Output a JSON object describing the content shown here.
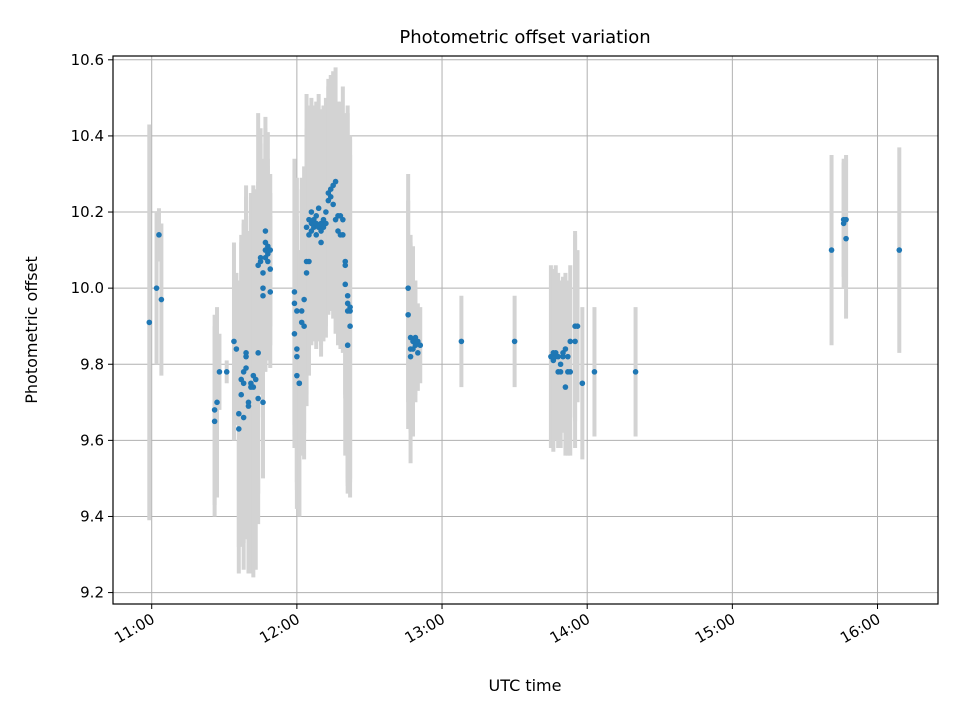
{
  "chart_data": {
    "type": "scatter",
    "title": "Photometric offset variation",
    "xlabel": "UTC time",
    "ylabel": "Photometric offset",
    "xlim": [
      "10:44",
      "16:25"
    ],
    "ylim": [
      9.17,
      10.61
    ],
    "x_ticks": [
      "11:00",
      "12:00",
      "13:00",
      "14:00",
      "15:00",
      "16:00"
    ],
    "y_ticks": [
      "9.2",
      "9.4",
      "9.6",
      "9.8",
      "10.0",
      "10.2",
      "10.4",
      "10.6"
    ],
    "grid": true,
    "colors": {
      "points": "#1f77b4",
      "errorbars": "#d3d3d3",
      "grid": "#b0b0b0"
    },
    "series": [
      {
        "points": [
          {
            "t": "10:59",
            "y": 9.91,
            "err": 0.52
          },
          {
            "t": "11:02",
            "y": 10.0,
            "err": 0.2
          },
          {
            "t": "11:03",
            "y": 10.14,
            "err": 0.07
          },
          {
            "t": "11:04",
            "y": 9.97,
            "err": 0.2
          },
          {
            "t": "11:26",
            "y": 9.65,
            "err": 0.25
          },
          {
            "t": "11:26",
            "y": 9.68,
            "err": 0.25
          },
          {
            "t": "11:27",
            "y": 9.7,
            "err": 0.25
          },
          {
            "t": "11:28",
            "y": 9.78,
            "err": 0.1
          },
          {
            "t": "11:31",
            "y": 9.78,
            "err": 0.03
          },
          {
            "t": "11:34",
            "y": 9.86,
            "err": 0.26
          },
          {
            "t": "11:35",
            "y": 9.84,
            "err": 0.2
          },
          {
            "t": "11:36",
            "y": 9.67,
            "err": 0.35
          },
          {
            "t": "11:36",
            "y": 9.63,
            "err": 0.38
          },
          {
            "t": "11:37",
            "y": 9.76,
            "err": 0.38
          },
          {
            "t": "11:37",
            "y": 9.72,
            "err": 0.4
          },
          {
            "t": "11:38",
            "y": 9.78,
            "err": 0.4
          },
          {
            "t": "11:38",
            "y": 9.75,
            "err": 0.42
          },
          {
            "t": "11:38",
            "y": 9.66,
            "err": 0.4
          },
          {
            "t": "11:39",
            "y": 9.83,
            "err": 0.4
          },
          {
            "t": "11:39",
            "y": 9.82,
            "err": 0.45
          },
          {
            "t": "11:39",
            "y": 9.79,
            "err": 0.45
          },
          {
            "t": "11:40",
            "y": 9.7,
            "err": 0.45
          },
          {
            "t": "11:40",
            "y": 9.69,
            "err": 0.42
          },
          {
            "t": "11:41",
            "y": 9.75,
            "err": 0.5
          },
          {
            "t": "11:41",
            "y": 9.74,
            "err": 0.45
          },
          {
            "t": "11:42",
            "y": 9.77,
            "err": 0.5
          },
          {
            "t": "11:42",
            "y": 9.74,
            "err": 0.5
          },
          {
            "t": "11:43",
            "y": 9.76,
            "err": 0.5
          },
          {
            "t": "11:44",
            "y": 9.83,
            "err": 0.45
          },
          {
            "t": "11:44",
            "y": 10.06,
            "err": 0.4
          },
          {
            "t": "11:44",
            "y": 9.71,
            "err": 0.25
          },
          {
            "t": "11:45",
            "y": 10.07,
            "err": 0.35
          },
          {
            "t": "11:45",
            "y": 10.08,
            "err": 0.3
          },
          {
            "t": "11:46",
            "y": 10.04,
            "err": 0.3
          },
          {
            "t": "11:46",
            "y": 10.0,
            "err": 0.3
          },
          {
            "t": "11:46",
            "y": 9.98,
            "err": 0.3
          },
          {
            "t": "11:46",
            "y": 9.7,
            "err": 0.2
          },
          {
            "t": "11:47",
            "y": 10.08,
            "err": 0.3
          },
          {
            "t": "11:47",
            "y": 10.1,
            "err": 0.3
          },
          {
            "t": "11:47",
            "y": 10.12,
            "err": 0.3
          },
          {
            "t": "11:47",
            "y": 10.15,
            "err": 0.3
          },
          {
            "t": "11:48",
            "y": 10.11,
            "err": 0.3
          },
          {
            "t": "11:48",
            "y": 10.09,
            "err": 0.25
          },
          {
            "t": "11:48",
            "y": 10.07,
            "err": 0.25
          },
          {
            "t": "11:49",
            "y": 10.1,
            "err": 0.2
          },
          {
            "t": "11:49",
            "y": 10.05,
            "err": 0.2
          },
          {
            "t": "11:49",
            "y": 9.99,
            "err": 0.2
          },
          {
            "t": "11:59",
            "y": 9.99,
            "err": 0.35
          },
          {
            "t": "11:59",
            "y": 9.96,
            "err": 0.35
          },
          {
            "t": "11:59",
            "y": 9.88,
            "err": 0.3
          },
          {
            "t": "12:00",
            "y": 9.94,
            "err": 0.35
          },
          {
            "t": "12:00",
            "y": 9.84,
            "err": 0.35
          },
          {
            "t": "12:00",
            "y": 9.82,
            "err": 0.35
          },
          {
            "t": "12:00",
            "y": 9.77,
            "err": 0.35
          },
          {
            "t": "12:01",
            "y": 9.75,
            "err": 0.35
          },
          {
            "t": "12:01",
            "y": 9.75,
            "err": 0.35
          },
          {
            "t": "12:02",
            "y": 9.94,
            "err": 0.35
          },
          {
            "t": "12:02",
            "y": 9.91,
            "err": 0.35
          },
          {
            "t": "12:03",
            "y": 9.9,
            "err": 0.35
          },
          {
            "t": "12:03",
            "y": 9.97,
            "err": 0.35
          },
          {
            "t": "12:04",
            "y": 10.04,
            "err": 0.35
          },
          {
            "t": "12:04",
            "y": 10.07,
            "err": 0.35
          },
          {
            "t": "12:04",
            "y": 10.16,
            "err": 0.35
          },
          {
            "t": "12:05",
            "y": 10.18,
            "err": 0.3
          },
          {
            "t": "12:05",
            "y": 10.07,
            "err": 0.3
          },
          {
            "t": "12:05",
            "y": 10.14,
            "err": 0.3
          },
          {
            "t": "12:06",
            "y": 10.17,
            "err": 0.3
          },
          {
            "t": "12:06",
            "y": 10.2,
            "err": 0.3
          },
          {
            "t": "12:06",
            "y": 10.15,
            "err": 0.3
          },
          {
            "t": "12:07",
            "y": 10.18,
            "err": 0.3
          },
          {
            "t": "12:07",
            "y": 10.16,
            "err": 0.3
          },
          {
            "t": "12:08",
            "y": 10.19,
            "err": 0.3
          },
          {
            "t": "12:08",
            "y": 10.14,
            "err": 0.3
          },
          {
            "t": "12:08",
            "y": 10.17,
            "err": 0.3
          },
          {
            "t": "12:09",
            "y": 10.21,
            "err": 0.3
          },
          {
            "t": "12:09",
            "y": 10.16,
            "err": 0.3
          },
          {
            "t": "12:10",
            "y": 10.17,
            "err": 0.3
          },
          {
            "t": "12:10",
            "y": 10.15,
            "err": 0.3
          },
          {
            "t": "12:10",
            "y": 10.12,
            "err": 0.3
          },
          {
            "t": "12:11",
            "y": 10.16,
            "err": 0.3
          },
          {
            "t": "12:11",
            "y": 10.18,
            "err": 0.3
          },
          {
            "t": "12:12",
            "y": 10.2,
            "err": 0.3
          },
          {
            "t": "12:12",
            "y": 10.17,
            "err": 0.3
          },
          {
            "t": "12:13",
            "y": 10.23,
            "err": 0.3
          },
          {
            "t": "12:13",
            "y": 10.25,
            "err": 0.3
          },
          {
            "t": "12:14",
            "y": 10.26,
            "err": 0.3
          },
          {
            "t": "12:14",
            "y": 10.24,
            "err": 0.3
          },
          {
            "t": "12:15",
            "y": 10.27,
            "err": 0.3
          },
          {
            "t": "12:15",
            "y": 10.22,
            "err": 0.3
          },
          {
            "t": "12:16",
            "y": 10.28,
            "err": 0.3
          },
          {
            "t": "12:16",
            "y": 10.18,
            "err": 0.3
          },
          {
            "t": "12:17",
            "y": 10.19,
            "err": 0.3
          },
          {
            "t": "12:17",
            "y": 10.15,
            "err": 0.3
          },
          {
            "t": "12:18",
            "y": 10.19,
            "err": 0.3
          },
          {
            "t": "12:18",
            "y": 10.14,
            "err": 0.3
          },
          {
            "t": "12:19",
            "y": 10.14,
            "err": 0.3
          },
          {
            "t": "12:19",
            "y": 10.18,
            "err": 0.35
          },
          {
            "t": "12:20",
            "y": 10.07,
            "err": 0.35
          },
          {
            "t": "12:20",
            "y": 10.06,
            "err": 0.35
          },
          {
            "t": "12:20",
            "y": 10.01,
            "err": 0.45
          },
          {
            "t": "12:21",
            "y": 9.98,
            "err": 0.5
          },
          {
            "t": "12:21",
            "y": 9.96,
            "err": 0.5
          },
          {
            "t": "12:21",
            "y": 9.94,
            "err": 0.45
          },
          {
            "t": "12:22",
            "y": 9.95,
            "err": 0.45
          },
          {
            "t": "12:22",
            "y": 9.94,
            "err": 0.45
          },
          {
            "t": "12:22",
            "y": 9.9,
            "err": 0.45
          },
          {
            "t": "12:21",
            "y": 9.85,
            "err": 0.35
          },
          {
            "t": "12:46",
            "y": 10.0,
            "err": 0.3
          },
          {
            "t": "12:46",
            "y": 9.93,
            "err": 0.3
          },
          {
            "t": "12:47",
            "y": 9.87,
            "err": 0.25
          },
          {
            "t": "12:47",
            "y": 9.84,
            "err": 0.3
          },
          {
            "t": "12:47",
            "y": 9.82,
            "err": 0.2
          },
          {
            "t": "12:48",
            "y": 9.86,
            "err": 0.25
          },
          {
            "t": "12:48",
            "y": 9.84,
            "err": 0.2
          },
          {
            "t": "12:49",
            "y": 9.87,
            "err": 0.15
          },
          {
            "t": "12:49",
            "y": 9.85,
            "err": 0.15
          },
          {
            "t": "12:50",
            "y": 9.83,
            "err": 0.1
          },
          {
            "t": "12:50",
            "y": 9.86,
            "err": 0.1
          },
          {
            "t": "12:51",
            "y": 9.85,
            "err": 0.1
          },
          {
            "t": "13:08",
            "y": 9.86,
            "err": 0.12
          },
          {
            "t": "13:30",
            "y": 9.86,
            "err": 0.12
          },
          {
            "t": "13:45",
            "y": 9.82,
            "err": 0.24
          },
          {
            "t": "13:46",
            "y": 9.83,
            "err": 0.22
          },
          {
            "t": "13:46",
            "y": 9.81,
            "err": 0.24
          },
          {
            "t": "13:47",
            "y": 9.82,
            "err": 0.22
          },
          {
            "t": "13:47",
            "y": 9.83,
            "err": 0.23
          },
          {
            "t": "13:48",
            "y": 9.82,
            "err": 0.22
          },
          {
            "t": "13:48",
            "y": 9.78,
            "err": 0.2
          },
          {
            "t": "13:49",
            "y": 9.8,
            "err": 0.22
          },
          {
            "t": "13:49",
            "y": 9.78,
            "err": 0.2
          },
          {
            "t": "13:50",
            "y": 9.82,
            "err": 0.2
          },
          {
            "t": "13:50",
            "y": 9.83,
            "err": 0.2
          },
          {
            "t": "13:51",
            "y": 9.84,
            "err": 0.2
          },
          {
            "t": "13:51",
            "y": 9.74,
            "err": 0.18
          },
          {
            "t": "13:52",
            "y": 9.82,
            "err": 0.2
          },
          {
            "t": "13:52",
            "y": 9.78,
            "err": 0.22
          },
          {
            "t": "13:53",
            "y": 9.78,
            "err": 0.22
          },
          {
            "t": "13:53",
            "y": 9.86,
            "err": 0.2
          },
          {
            "t": "13:55",
            "y": 9.86,
            "err": 0.28
          },
          {
            "t": "13:55",
            "y": 9.9,
            "err": 0.25
          },
          {
            "t": "13:56",
            "y": 9.9,
            "err": 0.2
          },
          {
            "t": "13:58",
            "y": 9.75,
            "err": 0.2
          },
          {
            "t": "14:03",
            "y": 9.78,
            "err": 0.17
          },
          {
            "t": "14:20",
            "y": 9.78,
            "err": 0.17
          },
          {
            "t": "15:41",
            "y": 10.1,
            "err": 0.25
          },
          {
            "t": "15:46",
            "y": 10.18,
            "err": 0.15
          },
          {
            "t": "15:46",
            "y": 10.17,
            "err": 0.17
          },
          {
            "t": "15:47",
            "y": 10.18,
            "err": 0.17
          },
          {
            "t": "15:47",
            "y": 10.13,
            "err": 0.21
          },
          {
            "t": "16:09",
            "y": 10.1,
            "err": 0.27
          }
        ]
      }
    ]
  }
}
